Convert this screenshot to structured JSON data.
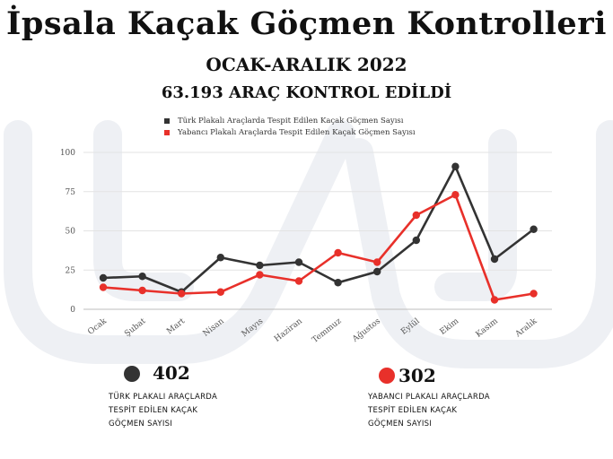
{
  "page": {
    "title": "İpsala Kaçak Göçmen Kontrolleri",
    "subtitle": "OCAK-ARALIK 2022",
    "subtitle2": "63.193 ARAÇ KONTROL EDİLDİ"
  },
  "colors": {
    "turk": "#333333",
    "yabanci": "#e8302a",
    "grid": "#e3e3e3",
    "axis": "#bdbdbd",
    "watermark": "#eef0f4"
  },
  "chart_data": {
    "type": "line",
    "categories": [
      "Ocak",
      "Şubat",
      "Mart",
      "Nisan",
      "Mayıs",
      "Haziran",
      "Temmuz",
      "Ağustos",
      "Eylül",
      "Ekim",
      "Kasım",
      "Aralık"
    ],
    "series": [
      {
        "name": "Türk Plakalı Araçlarda Tespit Edilen Kaçak Göçmen Sayısı",
        "color": "#333333",
        "values": [
          20,
          21,
          11,
          33,
          28,
          30,
          17,
          24,
          44,
          91,
          32,
          51
        ]
      },
      {
        "name": "Yabancı Plakalı Araçlarda Tespit Edilen Kaçak Göçmen Sayısı",
        "color": "#e8302a",
        "values": [
          14,
          12,
          10,
          11,
          22,
          18,
          36,
          30,
          60,
          73,
          6,
          10
        ]
      }
    ],
    "yticks": [
      0,
      25,
      50,
      75,
      100
    ],
    "ylim": [
      0,
      100
    ],
    "grid": true,
    "legend_position": "top"
  },
  "stats": [
    {
      "value": "402",
      "label_lines": [
        "TÜRK PLAKALI ARAÇLARDA",
        "TESPİT EDİLEN KAÇAK",
        "GÖÇMEN SAYISI"
      ],
      "color": "#333333"
    },
    {
      "value": "302",
      "label_lines": [
        "YABANCI PLAKALI ARAÇLARDA",
        "TESPİT EDİLEN KAÇAK",
        "GÖÇMEN SAYISI"
      ],
      "color": "#e8302a"
    }
  ]
}
